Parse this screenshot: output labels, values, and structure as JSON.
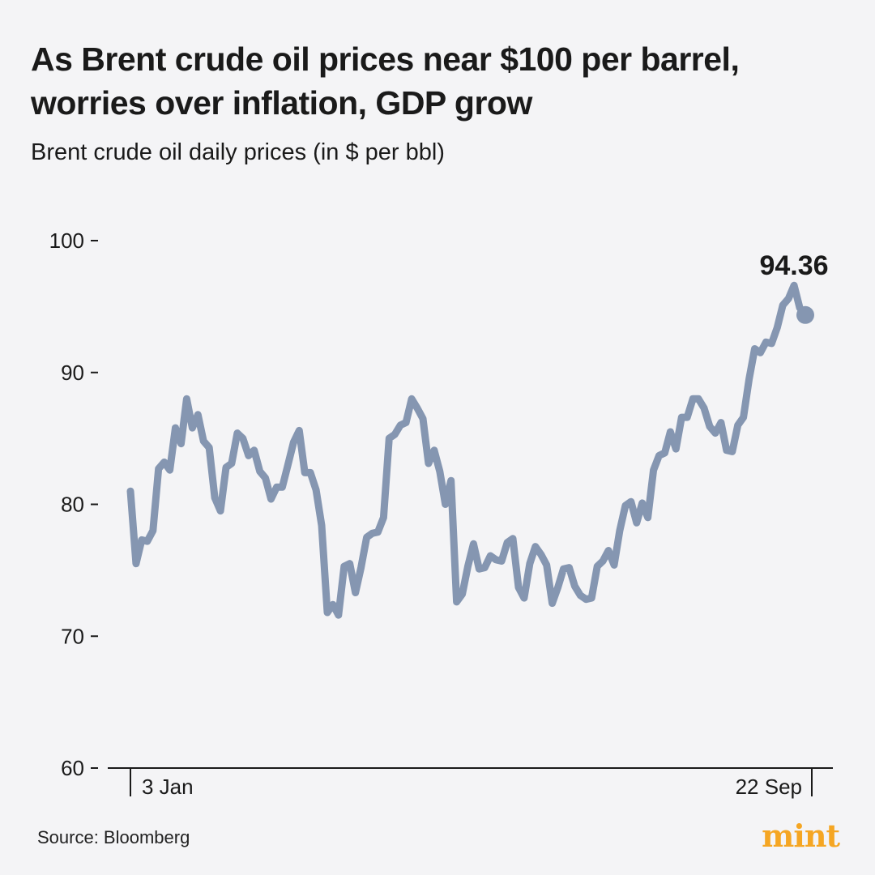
{
  "header": {
    "title": "As Brent crude oil prices near $100 per barrel, worries over inflation, GDP grow",
    "subtitle": "Brent crude oil daily prices (in $ per bbl)"
  },
  "footer": {
    "source": "Source: Bloomberg",
    "brand": "mint"
  },
  "colors": {
    "line": "#8596b1",
    "axis": "#1a1a1a",
    "background": "#f4f4f6",
    "brand": "#f5a623"
  },
  "chart_data": {
    "type": "line",
    "title": "Brent crude oil daily prices (in $ per bbl)",
    "xlabel": "",
    "ylabel": "",
    "ylim": [
      60,
      100
    ],
    "yticks": [
      100,
      90,
      80,
      70,
      60
    ],
    "ytick_labels": [
      "100",
      "90",
      "80",
      "70",
      "60"
    ],
    "xtick_labels": [
      "3 Jan",
      "22 Sep"
    ],
    "end_value_label": "94.36",
    "grid": false,
    "series": [
      {
        "name": "Brent crude",
        "values": [
          81.0,
          75.5,
          77.3,
          77.2,
          78.0,
          82.7,
          83.2,
          82.6,
          85.8,
          84.6,
          88.0,
          85.8,
          86.8,
          84.8,
          84.3,
          80.5,
          79.5,
          82.8,
          83.1,
          85.4,
          85.0,
          83.7,
          84.1,
          82.5,
          82.0,
          80.4,
          81.3,
          81.3,
          83.0,
          84.7,
          85.6,
          82.4,
          82.4,
          81.1,
          78.4,
          71.8,
          72.4,
          71.6,
          75.3,
          75.5,
          73.3,
          75.2,
          77.5,
          77.8,
          77.9,
          79.0,
          85.0,
          85.3,
          86.0,
          86.2,
          88.0,
          87.3,
          86.5,
          83.1,
          84.1,
          82.5,
          80.0,
          81.8,
          72.6,
          73.2,
          75.3,
          77.0,
          75.1,
          75.2,
          76.1,
          75.8,
          75.7,
          77.1,
          77.4,
          73.7,
          72.9,
          75.5,
          76.8,
          76.2,
          75.4,
          72.5,
          73.7,
          75.1,
          75.2,
          73.8,
          73.1,
          72.8,
          72.9,
          75.3,
          75.7,
          76.5,
          75.4,
          78.0,
          79.9,
          80.2,
          78.6,
          80.1,
          79.0,
          82.6,
          83.7,
          83.9,
          85.5,
          84.2,
          86.6,
          86.6,
          88.0,
          88.0,
          87.3,
          85.9,
          85.4,
          86.2,
          84.1,
          84.0,
          86.0,
          86.6,
          89.5,
          91.8,
          91.5,
          92.3,
          92.2,
          93.4,
          95.1,
          95.6,
          96.6,
          94.9,
          94.36
        ]
      }
    ]
  }
}
